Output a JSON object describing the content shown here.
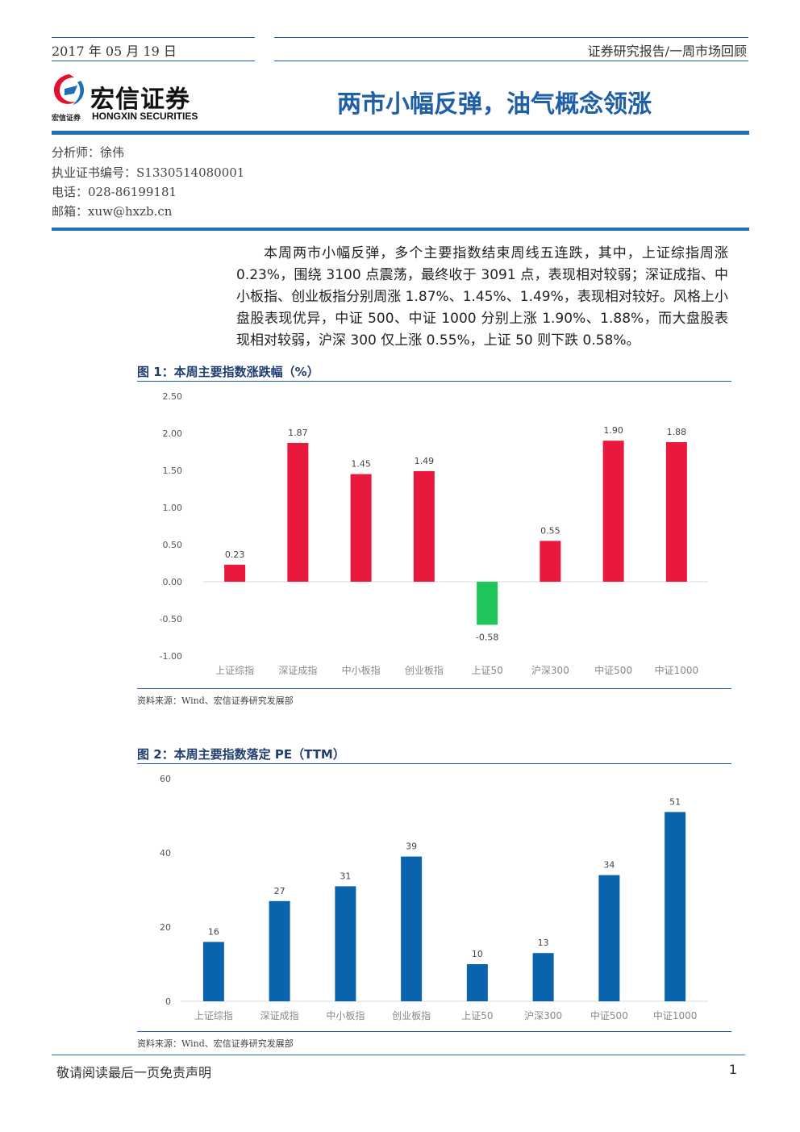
{
  "header": {
    "date": "2017 年 05 月 19 日",
    "report_type": "证券研究报告/一周市场回顾",
    "logo_cn": "宏信证券",
    "logo_sub_cn": "宏信证券",
    "logo_en": "HONGXIN SECURITIES",
    "headline": "两市小幅反弹，油气概念领涨",
    "colors": {
      "primary": "#1f6fb8",
      "logo_red": "#e3102e"
    }
  },
  "analyst": {
    "name_line": "分析师：徐伟",
    "license_line": "执业证书编号：S1330514080001",
    "phone_line": "电话：028-86199181",
    "email_line": "邮箱：xuw@hxzb.cn"
  },
  "summary": "本周两市小幅反弹，多个主要指数结束周线五连跌，其中，上证综指周涨0.23%，围绕 3100 点震荡，最终收于 3091 点，表现相对较弱；深证成指、中小板指、创业板指分别周涨 1.87%、1.45%、1.49%，表现相对较好。风格上小盘股表现优异，中证 500、中证 1000 分别上涨 1.90%、1.88%，而大盘股表现相对较弱，沪深 300 仅上涨 0.55%，上证 50 则下跌 0.58%。",
  "figures": [
    {
      "title": "图 1：本周主要指数涨跌幅（%）",
      "source": "资料来源：Wind、宏信证券研究发展部"
    },
    {
      "title": "图 2：本周主要指数落定 PE（TTM）",
      "source": "资料来源：Wind、宏信证券研究发展部"
    }
  ],
  "chart_data": [
    {
      "type": "bar",
      "categories": [
        "上证综指",
        "深证成指",
        "中小板指",
        "创业板指",
        "上证50",
        "沪深300",
        "中证500",
        "中证1000"
      ],
      "values": [
        0.23,
        1.87,
        1.45,
        1.49,
        -0.58,
        0.55,
        1.9,
        1.88
      ],
      "value_labels": [
        "0.23",
        "1.87",
        "1.45",
        "1.49",
        "-0.58",
        "0.55",
        "1.90",
        "1.88"
      ],
      "ylim": [
        -1.0,
        2.5
      ],
      "yticks": [
        2.5,
        2.0,
        1.5,
        1.0,
        0.5,
        0.0,
        -0.5,
        -1.0
      ],
      "ytick_labels": [
        "2.50",
        "2.00",
        "1.50",
        "1.00",
        "0.50",
        "0.00",
        "-0.50",
        "-1.00"
      ],
      "positive_color": "#e8193c",
      "negative_color": "#21c65a",
      "grid": false
    },
    {
      "type": "bar",
      "categories": [
        "上证综指",
        "深证成指",
        "中小板指",
        "创业板指",
        "上证50",
        "沪深300",
        "中证500",
        "中证1000"
      ],
      "values": [
        16,
        27,
        31,
        39,
        10,
        13,
        34,
        51
      ],
      "value_labels": [
        "16",
        "27",
        "31",
        "39",
        "10",
        "13",
        "34",
        "51"
      ],
      "ylim": [
        0,
        60
      ],
      "yticks": [
        60,
        40,
        20,
        0
      ],
      "ytick_labels": [
        "60",
        "40",
        "20",
        "0"
      ],
      "bar_color": "#0a64ad",
      "grid": false
    }
  ],
  "footer": {
    "disclaimer": "敬请阅读最后一页免责声明",
    "page_number": "1"
  }
}
